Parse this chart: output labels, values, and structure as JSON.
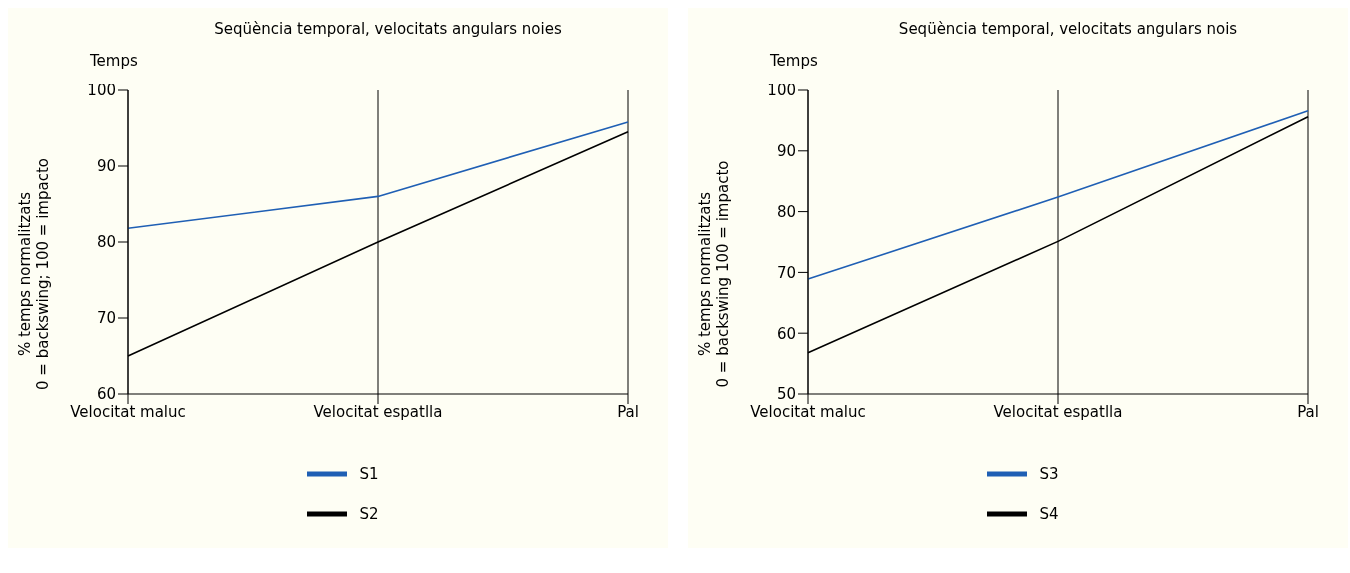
{
  "chart_data": [
    {
      "type": "line",
      "title": "Seqüència temporal, velocitats angulars noies",
      "ylabel": "% temps normalitzats\n0 = backswing; 100 = impacto",
      "annotations": [
        "Temps"
      ],
      "categories": [
        "Velocitat maluc",
        "Velocitat espatlla",
        "Pal"
      ],
      "ylim": [
        60,
        100
      ],
      "yticks": [
        60,
        70,
        80,
        90,
        100
      ],
      "grid": "x",
      "legend": "bottom",
      "marker": "none",
      "line_style": "solid",
      "series": [
        {
          "name": "S1",
          "color": "#1f5fb4",
          "values": [
            81.8,
            86,
            95.8
          ]
        },
        {
          "name": "S2",
          "color": "#000000",
          "values": [
            65,
            80,
            94.5
          ]
        }
      ]
    },
    {
      "type": "line",
      "title": "Seqüència temporal, velocitats angulars nois",
      "ylabel": "% temps normalitzats\n0 = backswing 100 = impacto",
      "annotations": [
        "Temps"
      ],
      "categories": [
        "Velocitat maluc",
        "Velocitat espatlla",
        "Pal"
      ],
      "ylim": [
        50,
        100
      ],
      "yticks": [
        50,
        60,
        70,
        80,
        90,
        100
      ],
      "grid": "x",
      "legend": "bottom",
      "marker": "none",
      "line_style": "solid",
      "series": [
        {
          "name": "S3",
          "color": "#1f5fb4",
          "values": [
            68.9,
            82.4,
            96.6
          ]
        },
        {
          "name": "S4",
          "color": "#000000",
          "values": [
            56.8,
            75.1,
            95.6
          ]
        }
      ]
    }
  ]
}
